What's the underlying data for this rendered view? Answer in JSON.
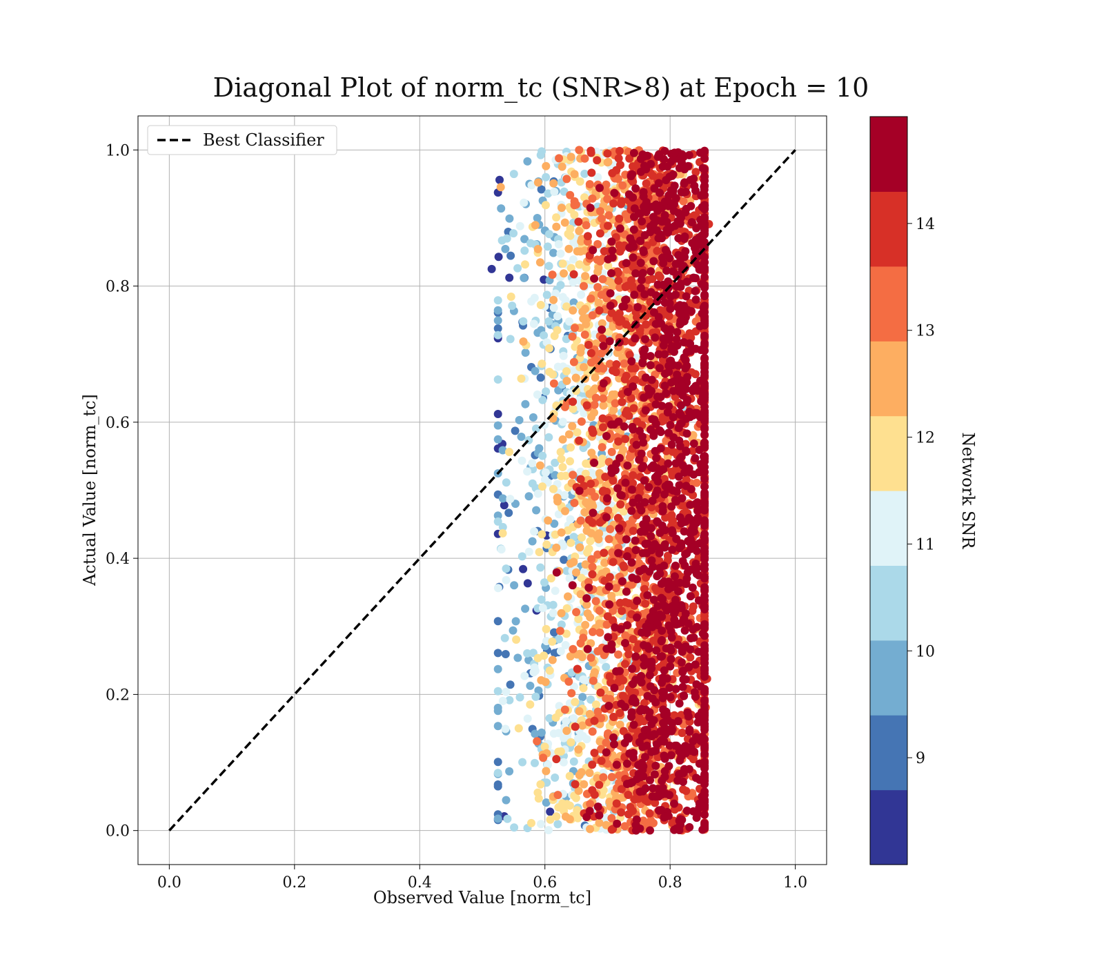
{
  "chart_data": {
    "type": "scatter",
    "title": "Diagonal Plot of norm_tc (SNR>8) at Epoch = 10",
    "xlabel": "Observed Value [norm_tc]",
    "ylabel": "Actual Value [norm_tc]",
    "xlim": [
      -0.05,
      1.05
    ],
    "ylim": [
      -0.05,
      1.05
    ],
    "x_ticks": [
      0.0,
      0.2,
      0.4,
      0.6,
      0.8,
      1.0
    ],
    "y_ticks": [
      0.0,
      0.2,
      0.4,
      0.6,
      0.8,
      1.0
    ],
    "x_tick_labels": [
      "0.0",
      "0.2",
      "0.4",
      "0.6",
      "0.8",
      "1.0"
    ],
    "y_tick_labels": [
      "0.0",
      "0.2",
      "0.4",
      "0.6",
      "0.8",
      "1.0"
    ],
    "grid": true,
    "legend": {
      "position": "top-left",
      "entries": [
        "Best Classifier"
      ]
    },
    "reference_line": {
      "name": "Best Classifier",
      "x": [
        0.0,
        1.0
      ],
      "y": [
        0.0,
        1.0
      ],
      "style": "dashed",
      "color": "#000000"
    },
    "scatter": {
      "x_range": [
        0.51,
        0.86
      ],
      "y_range": [
        0.0,
        1.0
      ],
      "color_variable": "Network SNR",
      "note": "dense cloud; low SNR points near x≈0.53-0.62, high SNR points concentrated near x≈0.72-0.84"
    },
    "colorbar": {
      "label": "Network SNR",
      "range": [
        8.0,
        15.0
      ],
      "ticks": [
        9,
        10,
        11,
        12,
        13,
        14
      ],
      "tick_labels": [
        "9",
        "10",
        "11",
        "12",
        "13",
        "14"
      ],
      "colors": [
        "#313695",
        "#4575b4",
        "#74add1",
        "#abd9e9",
        "#e0f3f8",
        "#fee090",
        "#fdae61",
        "#f46d43",
        "#d73027",
        "#a50026"
      ]
    }
  }
}
